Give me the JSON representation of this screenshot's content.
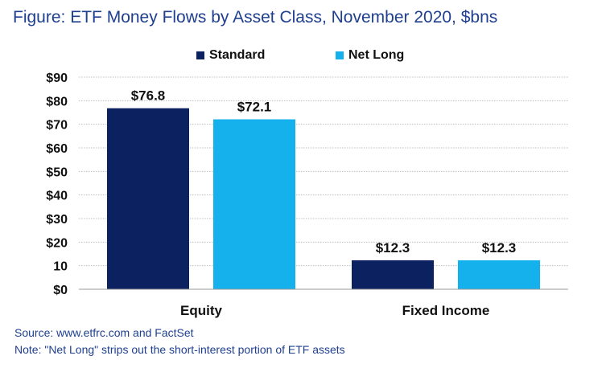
{
  "title": {
    "lead": "Figure:",
    "rest": "ETF Money Flows by Asset Class, November 2020, $bns"
  },
  "colors": {
    "standard": "#0c2160",
    "net_long": "#14b1ec",
    "title": "#1f3f8f",
    "grid": "#bfbfbf"
  },
  "chart_data": {
    "type": "bar",
    "categories": [
      "Equity",
      "Fixed Income"
    ],
    "series": [
      {
        "name": "Standard",
        "values": [
          76.8,
          12.3
        ],
        "labels": [
          "$76.8",
          "$12.3"
        ]
      },
      {
        "name": "Net Long",
        "values": [
          72.1,
          12.3
        ],
        "labels": [
          "$72.1",
          "$12.3"
        ]
      }
    ],
    "ylim": [
      0,
      90
    ],
    "yticks": [
      0,
      10,
      20,
      30,
      40,
      50,
      60,
      70,
      80,
      90
    ],
    "ytick_labels": [
      "$0",
      "10",
      "$20",
      "$30",
      "$40",
      "$50",
      "$60",
      "$70",
      "$80",
      "$90"
    ],
    "grid": true,
    "legend_position": "top-center"
  },
  "notes": {
    "source": "Source: www.etfrc.com and FactSet",
    "note": "Note: \"Net Long\" strips out the short-interest portion of ETF assets"
  }
}
